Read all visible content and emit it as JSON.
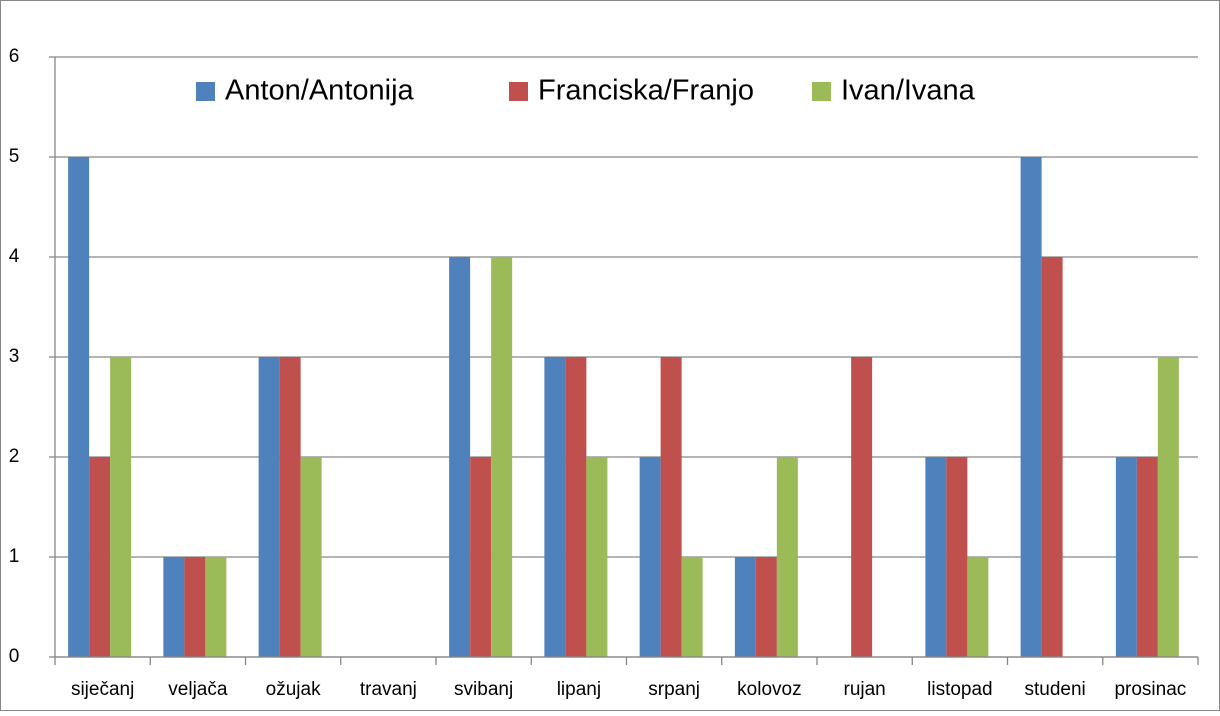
{
  "chart_data": {
    "type": "bar",
    "categories": [
      "siječanj",
      "veljača",
      "ožujak",
      "travanj",
      "svibanj",
      "lipanj",
      "srpanj",
      "kolovoz",
      "rujan",
      "listopad",
      "studeni",
      "prosinac"
    ],
    "series": [
      {
        "name": "Anton/Antonija",
        "color": "#4f81bd",
        "values": [
          5,
          1,
          3,
          0,
          4,
          3,
          2,
          1,
          0,
          2,
          5,
          2
        ]
      },
      {
        "name": "Franciska/Franjo",
        "color": "#c0504d",
        "values": [
          2,
          1,
          3,
          0,
          2,
          3,
          3,
          1,
          3,
          2,
          4,
          2
        ]
      },
      {
        "name": "Ivan/Ivana",
        "color": "#9bbb59",
        "values": [
          3,
          1,
          2,
          0,
          4,
          2,
          1,
          2,
          0,
          1,
          0,
          3
        ]
      }
    ],
    "ylim": [
      0,
      6
    ],
    "yticks": [
      0,
      1,
      2,
      3,
      4,
      5,
      6
    ],
    "grid": true,
    "legend": "top"
  }
}
